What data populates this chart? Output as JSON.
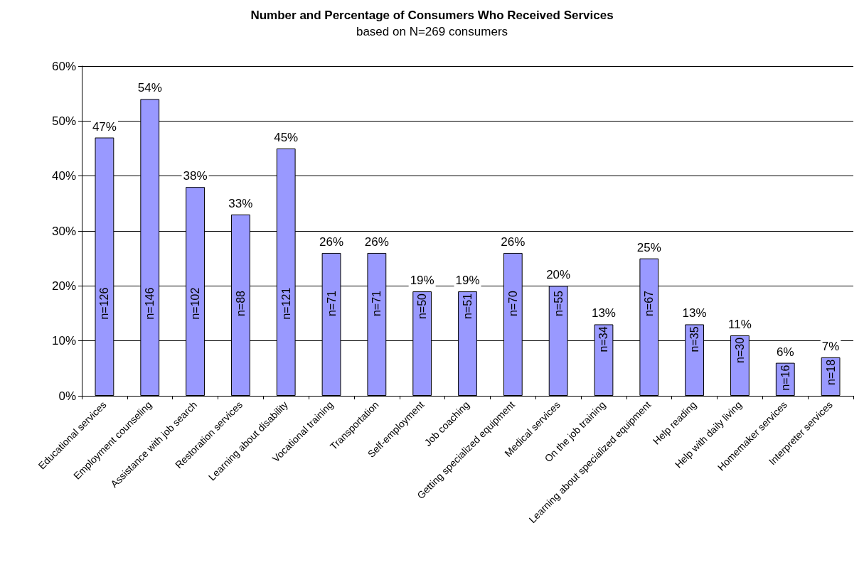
{
  "chart_data": {
    "type": "bar",
    "title": "Number and Percentage of Consumers Who Received Services",
    "subtitle": "based on N=269 consumers",
    "categories": [
      "Educational services",
      "Employment counseling",
      "Assistance with job search",
      "Restoration services",
      "Learning about disability",
      "Vocational training",
      "Transportation",
      "Self-employment",
      "Job coaching",
      "Getting specialized equipment",
      "Medical services",
      "On the job training",
      "Learning about specialized equipment",
      "Help reading",
      "Help with daily living",
      "Homemaker services",
      "Interpreter services"
    ],
    "values": [
      47,
      54,
      38,
      33,
      45,
      26,
      26,
      19,
      19,
      26,
      20,
      13,
      25,
      13,
      11,
      6,
      7
    ],
    "value_labels": [
      "47%",
      "54%",
      "38%",
      "33%",
      "45%",
      "26%",
      "26%",
      "19%",
      "19%",
      "26%",
      "20%",
      "13%",
      "25%",
      "13%",
      "11%",
      "6%",
      "7%"
    ],
    "color": "#9999ff",
    "ylim": [
      0,
      60
    ],
    "yticks": [
      {
        "value": 0,
        "label": "0%"
      },
      {
        "value": 10,
        "label": "10%"
      },
      {
        "value": 20,
        "label": "20%"
      },
      {
        "value": 30,
        "label": "30%"
      },
      {
        "value": 40,
        "label": "40%"
      },
      {
        "value": 50,
        "label": "50%"
      },
      {
        "value": 60,
        "label": "60%"
      }
    ],
    "grid": "y",
    "annotations": [
      "n=126",
      "n=146",
      "n=102",
      "n=88",
      "n=121",
      "n=71",
      "n=71",
      "n=50",
      "n=51",
      "n=70",
      "n=55",
      "n=34",
      "n=67",
      "n=35",
      "n=30",
      "n=16",
      "n=18"
    ]
  }
}
